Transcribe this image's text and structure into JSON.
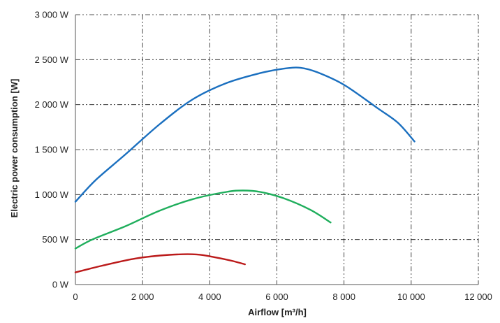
{
  "chart_data": {
    "type": "line",
    "title": "",
    "xlabel": "Airflow [m³/h]",
    "ylabel": "Electric power consumption [W]",
    "xlim": [
      0,
      12000
    ],
    "ylim": [
      0,
      3000
    ],
    "x_ticks": [
      0,
      2000,
      4000,
      6000,
      8000,
      10000,
      12000
    ],
    "x_tick_labels": [
      "0",
      "2 000",
      "4 000",
      "6 000",
      "8 000",
      "10 000",
      "12 000"
    ],
    "y_ticks": [
      0,
      500,
      1000,
      1500,
      2000,
      2500,
      3000
    ],
    "y_tick_labels": [
      "0 W",
      "500 W",
      "1 000 W",
      "1 500 W",
      "2 000 W",
      "2 500 W",
      "3 000 W"
    ],
    "grid": true,
    "legend": "none",
    "series": [
      {
        "color": "#1a6fbf",
        "points": [
          [
            0,
            920
          ],
          [
            600,
            1160
          ],
          [
            1500,
            1450
          ],
          [
            2500,
            1780
          ],
          [
            3500,
            2060
          ],
          [
            4500,
            2240
          ],
          [
            5500,
            2350
          ],
          [
            6200,
            2400
          ],
          [
            6700,
            2410
          ],
          [
            7200,
            2360
          ],
          [
            8000,
            2220
          ],
          [
            9000,
            1960
          ],
          [
            9600,
            1800
          ],
          [
            10100,
            1590
          ]
        ]
      },
      {
        "color": "#1fae5c",
        "points": [
          [
            0,
            400
          ],
          [
            500,
            500
          ],
          [
            1500,
            650
          ],
          [
            2500,
            820
          ],
          [
            3500,
            950
          ],
          [
            4500,
            1030
          ],
          [
            5000,
            1045
          ],
          [
            5500,
            1030
          ],
          [
            6200,
            960
          ],
          [
            7000,
            830
          ],
          [
            7600,
            690
          ]
        ]
      },
      {
        "color": "#bb1a1a",
        "points": [
          [
            0,
            135
          ],
          [
            800,
            210
          ],
          [
            1800,
            290
          ],
          [
            2800,
            330
          ],
          [
            3600,
            335
          ],
          [
            4200,
            300
          ],
          [
            4700,
            260
          ],
          [
            5050,
            225
          ]
        ]
      }
    ]
  }
}
